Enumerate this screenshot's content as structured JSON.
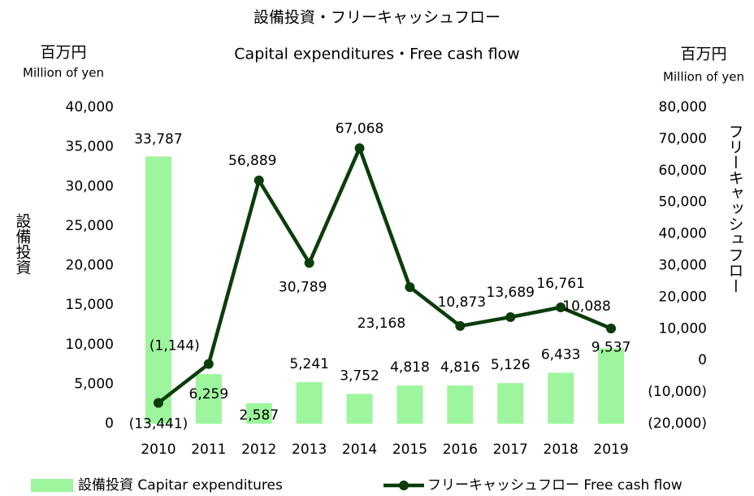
{
  "chart_data": {
    "type": "bar_line",
    "title": "設備投資・フリーキャッシュフロー",
    "subtitle": "Capital expenditures・Free cash flow",
    "y_unit": "百万円",
    "y_unit_en": "Million of yen",
    "y2_unit": "百万円",
    "y2_unit_en": "Million of yen",
    "ylabel": "設備投資",
    "y2label": "フリーキャッシュフロー",
    "categories": [
      "2010",
      "2011",
      "2012",
      "2013",
      "2014",
      "2015",
      "2016",
      "2017",
      "2018",
      "2019"
    ],
    "series": [
      {
        "name": "設備投資 Capitar expenditures",
        "type": "bar",
        "color": "#9df59d",
        "values": [
          33787,
          6259,
          2587,
          5241,
          3752,
          4818,
          4816,
          5126,
          6433,
          9537
        ],
        "value_labels": [
          "33,787",
          "6,259",
          "2,587",
          "5,241",
          "3,752",
          "4,818",
          "4,816",
          "5,126",
          "6,433",
          "9,537"
        ]
      },
      {
        "name": "フリーキャッシュフロー Free cash flow",
        "type": "line",
        "axis": "y2",
        "color": "#0b3d0b",
        "values": [
          -13441,
          -1144,
          56889,
          30789,
          67068,
          23168,
          10873,
          13689,
          16761,
          10088
        ],
        "value_labels": [
          "(13,441)",
          "(1,144)",
          "56,889",
          "30,789",
          "67,068",
          "23,168",
          "10,873",
          "13,689",
          "16,761",
          "10,088"
        ]
      }
    ],
    "ylim": [
      0,
      40000
    ],
    "yticks": [
      0,
      {
        "value": 5000,
        "label": "5,000"
      },
      {
        "value": 10000,
        "label": "10,000"
      },
      {
        "value": 15000,
        "label": "15,000"
      },
      {
        "value": 20000,
        "label": "20,000"
      },
      {
        "value": 25000,
        "label": "25,000"
      },
      {
        "value": 30000,
        "label": "30,000"
      },
      {
        "value": 35000,
        "label": "35,000"
      },
      {
        "value": 40000,
        "label": "40,000"
      }
    ],
    "y2lim": [
      -20000,
      80000
    ],
    "y2ticks": [
      {
        "value": -20000,
        "label": "(20,000)"
      },
      {
        "value": -10000,
        "label": "(10,000)"
      },
      0,
      {
        "value": 10000,
        "label": "10,000"
      },
      {
        "value": 20000,
        "label": "20,000"
      },
      {
        "value": 30000,
        "label": "30,000"
      },
      {
        "value": 40000,
        "label": "40,000"
      },
      {
        "value": 50000,
        "label": "50,000"
      },
      {
        "value": 60000,
        "label": "60,000"
      },
      {
        "value": 70000,
        "label": "70,000"
      },
      {
        "value": 80000,
        "label": "80,000"
      }
    ],
    "grid": false,
    "legend": "bottom"
  }
}
